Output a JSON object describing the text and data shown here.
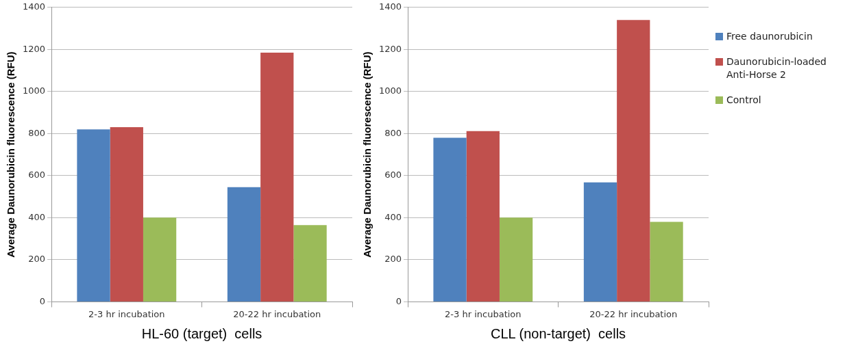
{
  "chart_data": [
    {
      "type": "bar",
      "xlabel": "HL-60 (target)  cells",
      "ylabel": "Average Daunorubicin fluorescence (RFU)",
      "categories": [
        "2-3 hr incubation",
        "20-22 hr incubation"
      ],
      "series": [
        {
          "color": "#4f81bd",
          "values": [
            820,
            545
          ]
        },
        {
          "color": "#c0504d",
          "values": [
            830,
            1185
          ]
        },
        {
          "color": "#9bbb59",
          "values": [
            400,
            365
          ]
        }
      ],
      "ylim": [
        0,
        1400
      ],
      "yticks": [
        0,
        200,
        400,
        600,
        800,
        1000,
        1200,
        1400
      ],
      "grid": "y",
      "legend": false
    },
    {
      "type": "bar",
      "xlabel": "CLL (non-target)  cells",
      "ylabel": "Average Daunorubicin fluorescence (RFU)",
      "categories": [
        "2-3 hr incubation",
        "20-22 hr incubation"
      ],
      "series": [
        {
          "name": "Free daunorubicin",
          "color": "#4f81bd",
          "values": [
            780,
            568
          ]
        },
        {
          "name": "Daunorubicin-loaded Anti-Horse 2",
          "color": "#c0504d",
          "values": [
            812,
            1340
          ]
        },
        {
          "name": "Control",
          "color": "#9bbb59",
          "values": [
            400,
            380
          ]
        }
      ],
      "ylim": [
        0,
        1400
      ],
      "yticks": [
        0,
        200,
        400,
        600,
        800,
        1000,
        1200,
        1400
      ],
      "grid": "y",
      "legend": "right"
    }
  ]
}
